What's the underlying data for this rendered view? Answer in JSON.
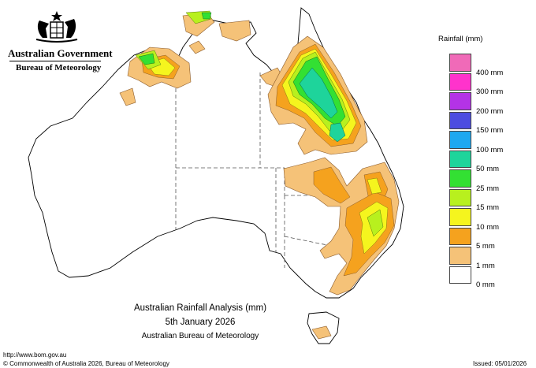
{
  "header": {
    "government": "Australian Government",
    "bureau": "Bureau of Meteorology"
  },
  "legend": {
    "title": "Rainfall (mm)",
    "bins": [
      {
        "label": "",
        "color": "#f06ab8"
      },
      {
        "label": "400 mm",
        "color": "#ff33cc"
      },
      {
        "label": "300 mm",
        "color": "#b433e6"
      },
      {
        "label": "200 mm",
        "color": "#4c4ce0"
      },
      {
        "label": "150 mm",
        "color": "#1ea8f0"
      },
      {
        "label": "100 mm",
        "color": "#1ed49b"
      },
      {
        "label": "50 mm",
        "color": "#33e033"
      },
      {
        "label": "25 mm",
        "color": "#b8f01e"
      },
      {
        "label": "15 mm",
        "color": "#f5f51e"
      },
      {
        "label": "10 mm",
        "color": "#f5a21e"
      },
      {
        "label": "5 mm",
        "color": "#f5c278"
      },
      {
        "label": "1 mm",
        "color": "#ffffff"
      }
    ],
    "bottom_label": "0 mm"
  },
  "caption": {
    "line1": "Australian Rainfall Analysis (mm)",
    "line2": "5th January 2026",
    "line3": "Australian Bureau of Meteorology"
  },
  "footer": {
    "url": "http://www.bom.gov.au",
    "copyright": "© Commonwealth of Australia 2026, Bureau of Meteorology",
    "issued": "Issued: 05/01/2026"
  }
}
